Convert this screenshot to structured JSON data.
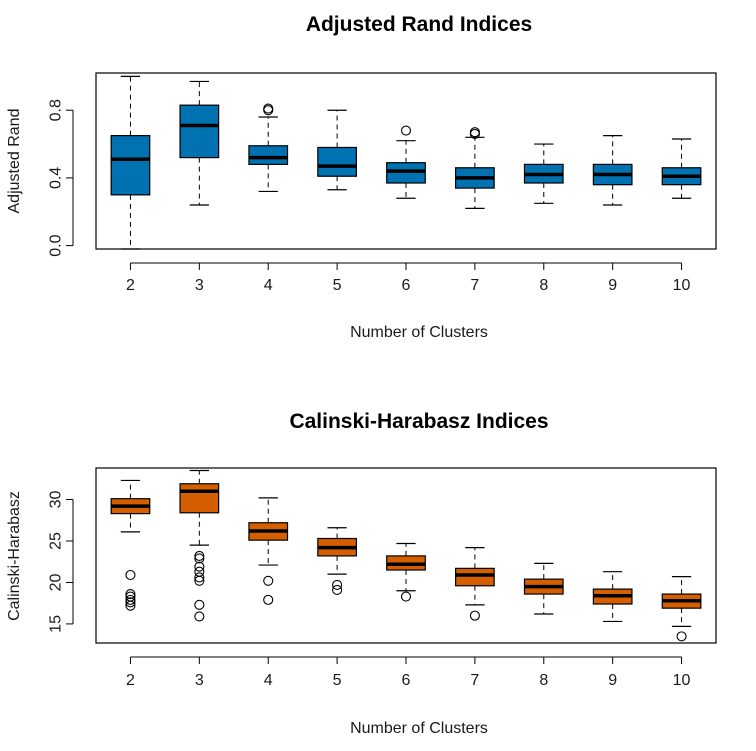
{
  "chart_data": [
    {
      "type": "boxplot",
      "title": "Adjusted Rand Indices",
      "xlabel": "Number of Clusters",
      "ylabel": "Adjusted Rand",
      "categories": [
        "2",
        "3",
        "4",
        "5",
        "6",
        "7",
        "8",
        "9",
        "10"
      ],
      "ylim": [
        -0.02,
        1.02
      ],
      "yticks": [
        0.0,
        0.4,
        0.8
      ],
      "ytick_labels": [
        "0.0",
        "0.4",
        "0.8"
      ],
      "box_color": "#0072B2",
      "boxes": [
        {
          "min": -0.02,
          "q1": 0.3,
          "median": 0.51,
          "q3": 0.65,
          "max": 1.0,
          "outliers": []
        },
        {
          "min": 0.24,
          "q1": 0.52,
          "median": 0.71,
          "q3": 0.83,
          "max": 0.97,
          "outliers": []
        },
        {
          "min": 0.32,
          "q1": 0.48,
          "median": 0.52,
          "q3": 0.59,
          "max": 0.76,
          "outliers": [
            0.8,
            0.81
          ]
        },
        {
          "min": 0.33,
          "q1": 0.41,
          "median": 0.47,
          "q3": 0.58,
          "max": 0.8,
          "outliers": []
        },
        {
          "min": 0.28,
          "q1": 0.37,
          "median": 0.44,
          "q3": 0.49,
          "max": 0.62,
          "outliers": [
            0.68
          ]
        },
        {
          "min": 0.22,
          "q1": 0.34,
          "median": 0.4,
          "q3": 0.46,
          "max": 0.64,
          "outliers": [
            0.66,
            0.67
          ]
        },
        {
          "min": 0.25,
          "q1": 0.37,
          "median": 0.42,
          "q3": 0.48,
          "max": 0.6,
          "outliers": []
        },
        {
          "min": 0.24,
          "q1": 0.36,
          "median": 0.42,
          "q3": 0.48,
          "max": 0.65,
          "outliers": []
        },
        {
          "min": 0.28,
          "q1": 0.36,
          "median": 0.41,
          "q3": 0.46,
          "max": 0.63,
          "outliers": []
        }
      ]
    },
    {
      "type": "boxplot",
      "title": "Calinski-Harabasz Indices",
      "xlabel": "Number of Clusters",
      "ylabel": "Calinski-Harabasz",
      "categories": [
        "2",
        "3",
        "4",
        "5",
        "6",
        "7",
        "8",
        "9",
        "10"
      ],
      "ylim": [
        12.7,
        33.8
      ],
      "yticks": [
        15,
        20,
        25,
        30
      ],
      "ytick_labels": [
        "15",
        "20",
        "25",
        "30"
      ],
      "box_color": "#D55E00",
      "boxes": [
        {
          "min": 26.1,
          "q1": 28.3,
          "median": 29.2,
          "q3": 30.1,
          "max": 32.3,
          "outliers": [
            20.9,
            18.6,
            18.3,
            17.9,
            17.6,
            17.2
          ]
        },
        {
          "min": 24.5,
          "q1": 28.4,
          "median": 31.0,
          "q3": 31.9,
          "max": 33.5,
          "outliers": [
            23.2,
            22.9,
            21.9,
            21.3,
            20.6,
            20.2,
            17.3,
            15.9
          ]
        },
        {
          "min": 22.1,
          "q1": 25.1,
          "median": 26.2,
          "q3": 27.2,
          "max": 30.2,
          "outliers": [
            20.2,
            17.9
          ]
        },
        {
          "min": 21.0,
          "q1": 23.2,
          "median": 24.2,
          "q3": 25.3,
          "max": 26.6,
          "outliers": [
            19.7,
            19.1
          ]
        },
        {
          "min": 19.0,
          "q1": 21.5,
          "median": 22.2,
          "q3": 23.2,
          "max": 24.7,
          "outliers": [
            18.3
          ]
        },
        {
          "min": 17.3,
          "q1": 19.6,
          "median": 20.9,
          "q3": 21.7,
          "max": 24.2,
          "outliers": [
            16.0
          ]
        },
        {
          "min": 16.2,
          "q1": 18.6,
          "median": 19.5,
          "q3": 20.4,
          "max": 22.3,
          "outliers": []
        },
        {
          "min": 15.3,
          "q1": 17.4,
          "median": 18.4,
          "q3": 19.2,
          "max": 21.3,
          "outliers": []
        },
        {
          "min": 14.7,
          "q1": 16.9,
          "median": 17.8,
          "q3": 18.6,
          "max": 20.7,
          "outliers": [
            13.5
          ]
        }
      ]
    }
  ]
}
